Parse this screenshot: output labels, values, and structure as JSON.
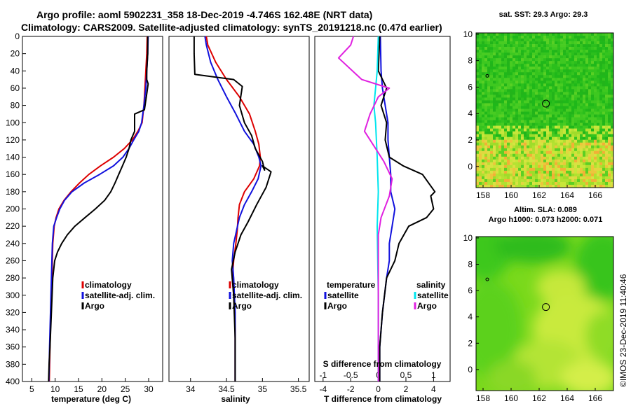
{
  "header": {
    "title_line1": "Argo profile: aoml 5902231_358 18-Dec-2019 -4.746S 162.48E (NRT data)",
    "title_line2": "Climatology: CARS2009. Satellite-adjusted climatology: synTS_20191218.nc (0.47d earlier)"
  },
  "credit": "©IMOS 23-Dec-2019 11:40:46",
  "colors": {
    "climatology": "#dd0000",
    "satellite": "#1111dd",
    "argo": "#000000",
    "s_sat": "#00e5ee",
    "s_argo": "#e020e0"
  },
  "chart_data": [
    {
      "type": "line",
      "id": "temperature",
      "xlabel": "temperature (deg C)",
      "xlim": [
        3,
        33
      ],
      "xticks": [
        5,
        10,
        15,
        20,
        25,
        30
      ],
      "ylim": [
        400,
        0
      ],
      "yticks": [
        0,
        20,
        40,
        60,
        80,
        100,
        120,
        140,
        160,
        180,
        200,
        220,
        240,
        260,
        280,
        300,
        320,
        340,
        360,
        380,
        400
      ],
      "legend": [
        "climatology",
        "satellite-adj. clim.",
        "Argo"
      ],
      "series": [
        {
          "name": "climatology",
          "color_key": "climatology",
          "x": [
            29.7,
            29.6,
            29.4,
            29.2,
            29.0,
            28.6,
            27.7,
            26.5,
            24.8,
            22.5,
            19.7,
            17.2,
            15.2,
            13.4,
            11.9,
            10.8,
            10.2,
            9.8,
            9.5,
            9.3,
            9.1,
            8.9,
            8.75
          ],
          "y": [
            0,
            20,
            40,
            60,
            80,
            100,
            110,
            120,
            130,
            140,
            150,
            160,
            170,
            180,
            190,
            200,
            210,
            220,
            240,
            280,
            320,
            360,
            400
          ]
        },
        {
          "name": "satellite-adj. clim.",
          "color_key": "satellite",
          "x": [
            29.9,
            29.8,
            29.6,
            29.4,
            29.0,
            28.5,
            27.9,
            26.8,
            25.8,
            24.5,
            22.5,
            19.5,
            16.2,
            13.6,
            12.0,
            11.0,
            10.3,
            9.7,
            9.4,
            9.2,
            9.0,
            8.8,
            8.65
          ],
          "y": [
            0,
            20,
            40,
            60,
            80,
            100,
            110,
            120,
            130,
            140,
            150,
            160,
            170,
            180,
            190,
            200,
            210,
            220,
            240,
            280,
            320,
            360,
            400
          ]
        },
        {
          "name": "Argo",
          "color_key": "argo",
          "x": [
            29.8,
            29.8,
            29.6,
            29.6,
            29.9,
            29.5,
            29.1,
            27.0,
            27.0,
            26.2,
            25.8,
            25.2,
            24.4,
            23.6,
            22.8,
            21.9,
            20.6,
            18.6,
            16.4,
            14.2,
            12.6,
            11.4,
            10.5,
            9.9,
            9.5,
            9.2,
            8.9,
            8.7,
            8.6
          ],
          "y": [
            0,
            20,
            40,
            50,
            55,
            70,
            85,
            90,
            110,
            120,
            130,
            140,
            150,
            160,
            170,
            180,
            190,
            200,
            210,
            220,
            230,
            240,
            250,
            260,
            280,
            320,
            360,
            380,
            400
          ]
        }
      ]
    },
    {
      "type": "line",
      "id": "salinity",
      "xlabel": "salinity",
      "xlim": [
        33.7,
        35.65
      ],
      "xticks": [
        34,
        34.5,
        35,
        35.5
      ],
      "ylim": [
        400,
        0
      ],
      "legend": [
        "climatology",
        "satellite-adj. clim.",
        "Argo"
      ],
      "series": [
        {
          "name": "climatology",
          "color_key": "climatology",
          "x": [
            34.22,
            34.24,
            34.35,
            34.5,
            34.68,
            34.82,
            34.9,
            34.95,
            34.97,
            34.96,
            34.88,
            34.75,
            34.68,
            34.66,
            34.65,
            34.63,
            34.6,
            34.58,
            34.6,
            34.62,
            34.62,
            34.62
          ],
          "y": [
            0,
            10,
            30,
            50,
            70,
            90,
            110,
            125,
            140,
            150,
            165,
            180,
            195,
            210,
            225,
            240,
            260,
            280,
            300,
            340,
            380,
            400
          ]
        },
        {
          "name": "satellite-adj. clim.",
          "color_key": "satellite",
          "x": [
            34.2,
            34.22,
            34.28,
            34.38,
            34.5,
            34.63,
            34.75,
            34.88,
            34.95,
            34.98,
            34.94,
            34.85,
            34.75,
            34.68,
            34.64,
            34.6,
            34.58,
            34.6,
            34.62,
            34.62,
            34.62
          ],
          "y": [
            0,
            10,
            30,
            50,
            70,
            90,
            110,
            125,
            140,
            150,
            165,
            180,
            195,
            210,
            225,
            240,
            260,
            280,
            320,
            360,
            400
          ]
        },
        {
          "name": "Argo",
          "color_key": "argo",
          "x": [
            34.05,
            34.05,
            34.06,
            34.6,
            34.72,
            34.68,
            34.75,
            34.85,
            34.9,
            35.0,
            35.03,
            35.0,
            35.12,
            35.05,
            34.92,
            34.8,
            34.7,
            34.62,
            34.57,
            34.6,
            34.62,
            34.62
          ],
          "y": [
            0,
            20,
            44,
            50,
            58,
            80,
            100,
            115,
            130,
            145,
            155,
            150,
            157,
            175,
            195,
            215,
            230,
            250,
            270,
            300,
            350,
            400
          ]
        }
      ]
    },
    {
      "type": "line",
      "id": "difference",
      "xlabel": "T difference from climatology",
      "xlabel_top": "S difference from climatology",
      "xlim": [
        -4.6,
        5.2
      ],
      "xticks": [
        -4,
        -2,
        0,
        2,
        4
      ],
      "top_ticks": [
        -1,
        -0.5,
        0,
        0.5,
        1
      ],
      "top_tick_labels": [
        "-1",
        "-0.5",
        "0",
        "0.5",
        "1"
      ],
      "ylim": [
        400,
        0
      ],
      "legend_left_title": "temperature",
      "legend_left": [
        "satellite",
        "Argo"
      ],
      "legend_right_title": "salinity",
      "legend_right": [
        "satellite",
        "Argo"
      ],
      "series": [
        {
          "name": "T satellite",
          "color_key": "satellite",
          "x": [
            0.15,
            0.2,
            0.3,
            0.5,
            0.7,
            0.7,
            0.8,
            0.9,
            0.9,
            1.2,
            1.0,
            0.8,
            0.8,
            0.6,
            0.3,
            0.1,
            0.1
          ],
          "y": [
            0,
            40,
            60,
            80,
            100,
            120,
            140,
            160,
            180,
            200,
            220,
            240,
            260,
            280,
            320,
            360,
            400
          ]
        },
        {
          "name": "T Argo",
          "color_key": "argo",
          "x": [
            0.1,
            0.0,
            0.3,
            0.6,
            0.2,
            0.6,
            0.5,
            0.8,
            1.8,
            3.2,
            4.1,
            3.8,
            4.0,
            3.5,
            2.2,
            1.5,
            1.2,
            0.6,
            0.3,
            0.1,
            0.1
          ],
          "y": [
            0,
            40,
            50,
            60,
            80,
            100,
            120,
            140,
            150,
            160,
            180,
            185,
            200,
            210,
            220,
            240,
            260,
            280,
            320,
            360,
            400
          ]
        },
        {
          "name": "S satellite",
          "color_key": "s_sat",
          "x": [
            0.0,
            -0.02,
            -0.05,
            -0.08,
            -0.05,
            -0.02,
            0.0,
            -0.02,
            -0.01,
            0.0,
            0.0,
            0.0
          ],
          "y": [
            0,
            40,
            60,
            80,
            100,
            140,
            180,
            220,
            260,
            300,
            360,
            400
          ]
        },
        {
          "name": "S Argo",
          "color_key": "s_argo",
          "x": [
            -0.45,
            -0.5,
            -0.72,
            -0.3,
            0.2,
            0.0,
            -0.15,
            -0.25,
            -0.05,
            0.1,
            0.25,
            0.2,
            0.05,
            0.0,
            0.0,
            0.0,
            0.0,
            0.0,
            0.0,
            0.0
          ],
          "y": [
            0,
            10,
            25,
            50,
            60,
            70,
            90,
            110,
            130,
            145,
            165,
            185,
            210,
            230,
            250,
            280,
            300,
            340,
            380,
            400
          ]
        }
      ]
    },
    {
      "type": "heatmap",
      "id": "sst_map",
      "title": "sat. SST: 29.3 Argo: 29.3",
      "xlim": [
        157.5,
        167.3
      ],
      "xticks": [
        158,
        160,
        162,
        164,
        166
      ],
      "ylim": [
        -1.6,
        10.1
      ],
      "yticks": [
        0,
        2,
        4,
        6,
        8,
        10
      ],
      "marker": [
        162.48,
        4.75
      ],
      "marker_small": [
        158.3,
        6.85
      ]
    },
    {
      "type": "heatmap",
      "id": "sla_map",
      "title_line1": "Altim. SLA: 0.089",
      "title_line2": "Argo h1000: 0.073 h2000: 0.071",
      "xlim": [
        157.5,
        167.3
      ],
      "xticks": [
        158,
        160,
        162,
        164,
        166
      ],
      "ylim": [
        -1.6,
        10.1
      ],
      "yticks": [
        0,
        2,
        4,
        6,
        8,
        10
      ],
      "marker": [
        162.48,
        4.75
      ],
      "marker_small": [
        158.3,
        6.85
      ]
    }
  ]
}
